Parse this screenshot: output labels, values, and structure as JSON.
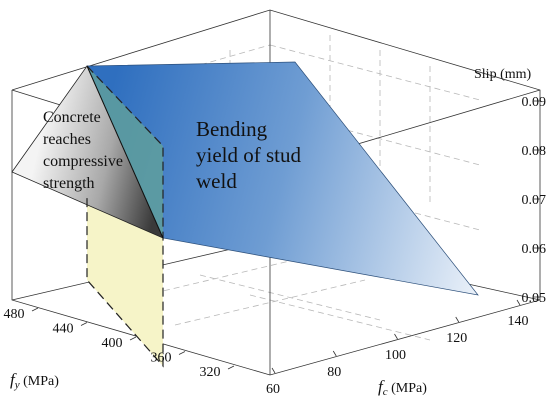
{
  "chart_data": {
    "type": "surface3d",
    "title": "",
    "axes": {
      "fc": {
        "label_symbol": "f",
        "label_sub": "c",
        "label_unit": " (MPa)",
        "ticks": [
          60,
          80,
          100,
          120,
          140
        ],
        "range": [
          60,
          140
        ]
      },
      "fy": {
        "label_symbol": "f",
        "label_sub": "y",
        "label_unit": " (MPa)",
        "ticks": [
          480,
          440,
          400,
          360,
          320
        ],
        "range": [
          320,
          480
        ]
      },
      "slip": {
        "label": "Slip (mm)",
        "ticks": [
          "0.05",
          "0.06",
          "0.07",
          "0.08",
          "0.09"
        ],
        "range": [
          0.05,
          0.09
        ]
      }
    },
    "regions": [
      {
        "name": "concrete",
        "label_lines": [
          "Concrete",
          "reaches",
          "compressive",
          "strength"
        ],
        "color": "#8a8a8a"
      },
      {
        "name": "weld",
        "label_lines": [
          "Bending",
          "yield of stud",
          "weld"
        ],
        "color": "#3576c4"
      }
    ],
    "failure_boundary_color": "#f6f4c8"
  }
}
